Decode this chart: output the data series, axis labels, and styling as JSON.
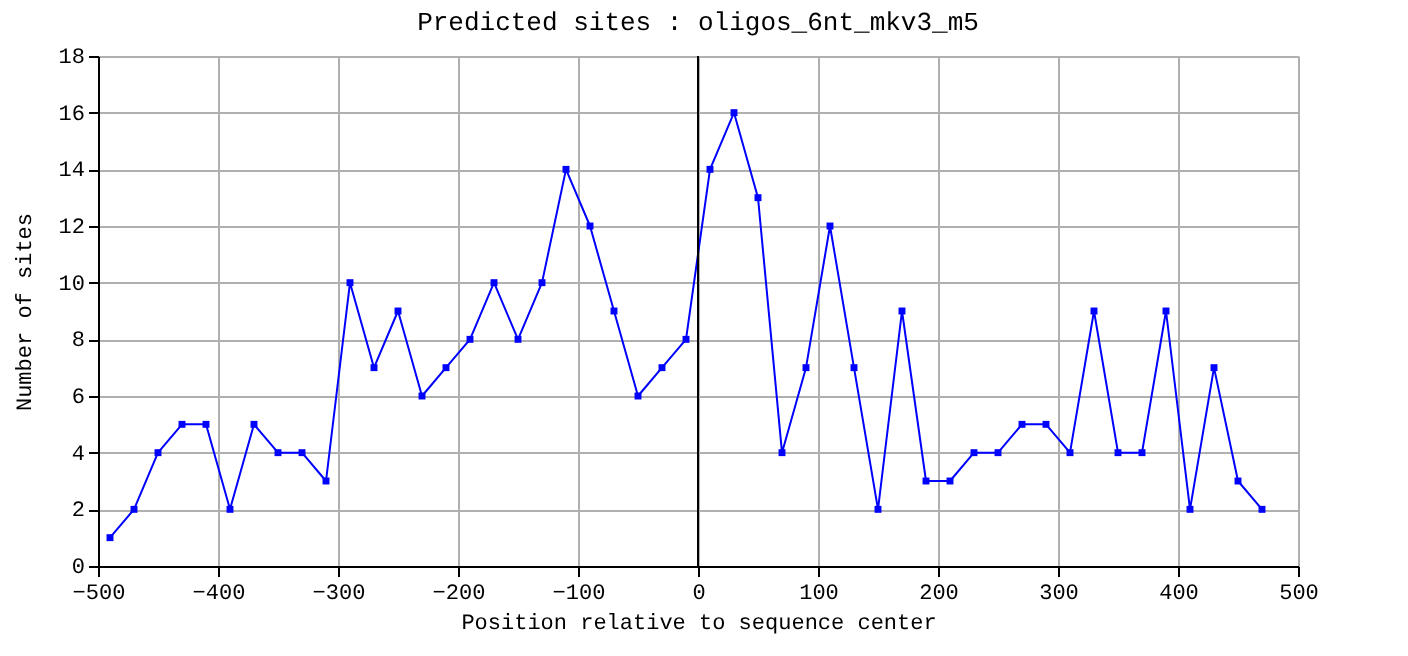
{
  "chart_data": {
    "type": "line",
    "title": "Predicted sites : oligos_6nt_mkv3_m5",
    "xlabel": "Position relative to sequence center",
    "ylabel": "Number of sites",
    "x": [
      -490,
      -470,
      -450,
      -430,
      -410,
      -390,
      -370,
      -350,
      -330,
      -310,
      -290,
      -270,
      -250,
      -230,
      -210,
      -190,
      -170,
      -150,
      -130,
      -110,
      -90,
      -70,
      -50,
      -30,
      -10,
      10,
      30,
      50,
      70,
      90,
      110,
      130,
      150,
      170,
      190,
      210,
      230,
      250,
      270,
      290,
      310,
      330,
      350,
      370,
      390,
      410,
      430,
      450,
      470
    ],
    "series": [
      {
        "color": "#0000ff",
        "values": [
          1,
          2,
          4,
          5,
          5,
          2,
          5,
          4,
          4,
          3,
          10,
          7,
          9,
          6,
          7,
          8,
          10,
          8,
          10,
          14,
          12,
          9,
          6,
          7,
          8,
          14,
          16,
          13,
          4,
          7,
          12,
          7,
          2,
          9,
          3,
          3,
          4,
          4,
          5,
          5,
          4,
          9,
          4,
          4,
          9,
          2,
          7,
          3,
          2
        ]
      }
    ],
    "xlim": [
      -500,
      500
    ],
    "xticks": [
      -500,
      -400,
      -300,
      -200,
      -100,
      0,
      100,
      200,
      300,
      400,
      500
    ],
    "ylim": [
      0,
      18
    ],
    "yticks": [
      0,
      2,
      4,
      6,
      8,
      10,
      12,
      14,
      16,
      18
    ],
    "ref_lines": [
      {
        "axis": "x",
        "value": 0,
        "color": "#000000"
      }
    ],
    "grid": true,
    "marker": "square",
    "line_style": "solid"
  }
}
